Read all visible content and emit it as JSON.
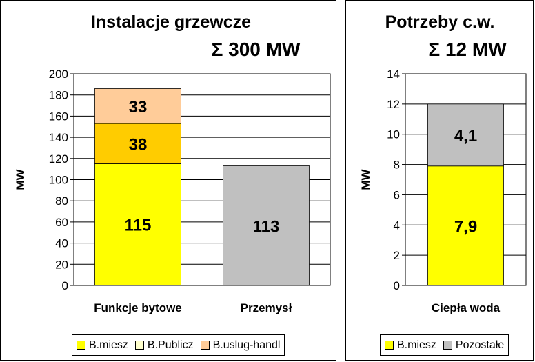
{
  "chart_data": [
    {
      "type": "bar",
      "stacked": true,
      "title": "Instalacje grzewcze",
      "subtitle": "Σ 300 MW",
      "ylabel": "MW",
      "ylim": [
        0,
        200
      ],
      "yticks": [
        "0",
        "20",
        "40",
        "60",
        "80",
        "100",
        "120",
        "140",
        "160",
        "180",
        "200"
      ],
      "categories": [
        "Funkcje bytowe",
        "Przemysł"
      ],
      "grid": true,
      "legend": "bottom",
      "series": [
        {
          "name": "B.miesz",
          "color": "#ffff00",
          "values": [
            115,
            0
          ],
          "labels": [
            "115",
            ""
          ]
        },
        {
          "name": "B.Publicz",
          "color": "#ffcc00",
          "values": [
            38,
            0
          ],
          "labels": [
            "38",
            ""
          ]
        },
        {
          "name": "B.uslug-handl",
          "color": "#ffcc99",
          "values": [
            33,
            0
          ],
          "labels": [
            "33",
            ""
          ]
        },
        {
          "color": "#c0c0c0",
          "values": [
            0,
            113
          ],
          "labels": [
            "",
            "113"
          ]
        }
      ],
      "legend_swatches": [
        "#ffff00",
        "#ffffcc",
        "#ffcc99"
      ]
    },
    {
      "type": "bar",
      "stacked": true,
      "title": "Potrzeby c.w.",
      "subtitle": "Σ 12 MW",
      "ylabel": "MW",
      "ylim": [
        0,
        14
      ],
      "yticks": [
        "0",
        "2",
        "4",
        "6",
        "8",
        "10",
        "12",
        "14"
      ],
      "categories": [
        "Ciepła woda"
      ],
      "grid": true,
      "legend": "bottom",
      "series": [
        {
          "name": "B.miesz",
          "color": "#ffff00",
          "values": [
            7.9
          ],
          "labels": [
            "7,9"
          ]
        },
        {
          "name": "Pozostałe",
          "color": "#c0c0c0",
          "values": [
            4.1
          ],
          "labels": [
            "4,1"
          ]
        }
      ],
      "legend_swatches": [
        "#ffff00",
        "#c0c0c0"
      ]
    }
  ]
}
